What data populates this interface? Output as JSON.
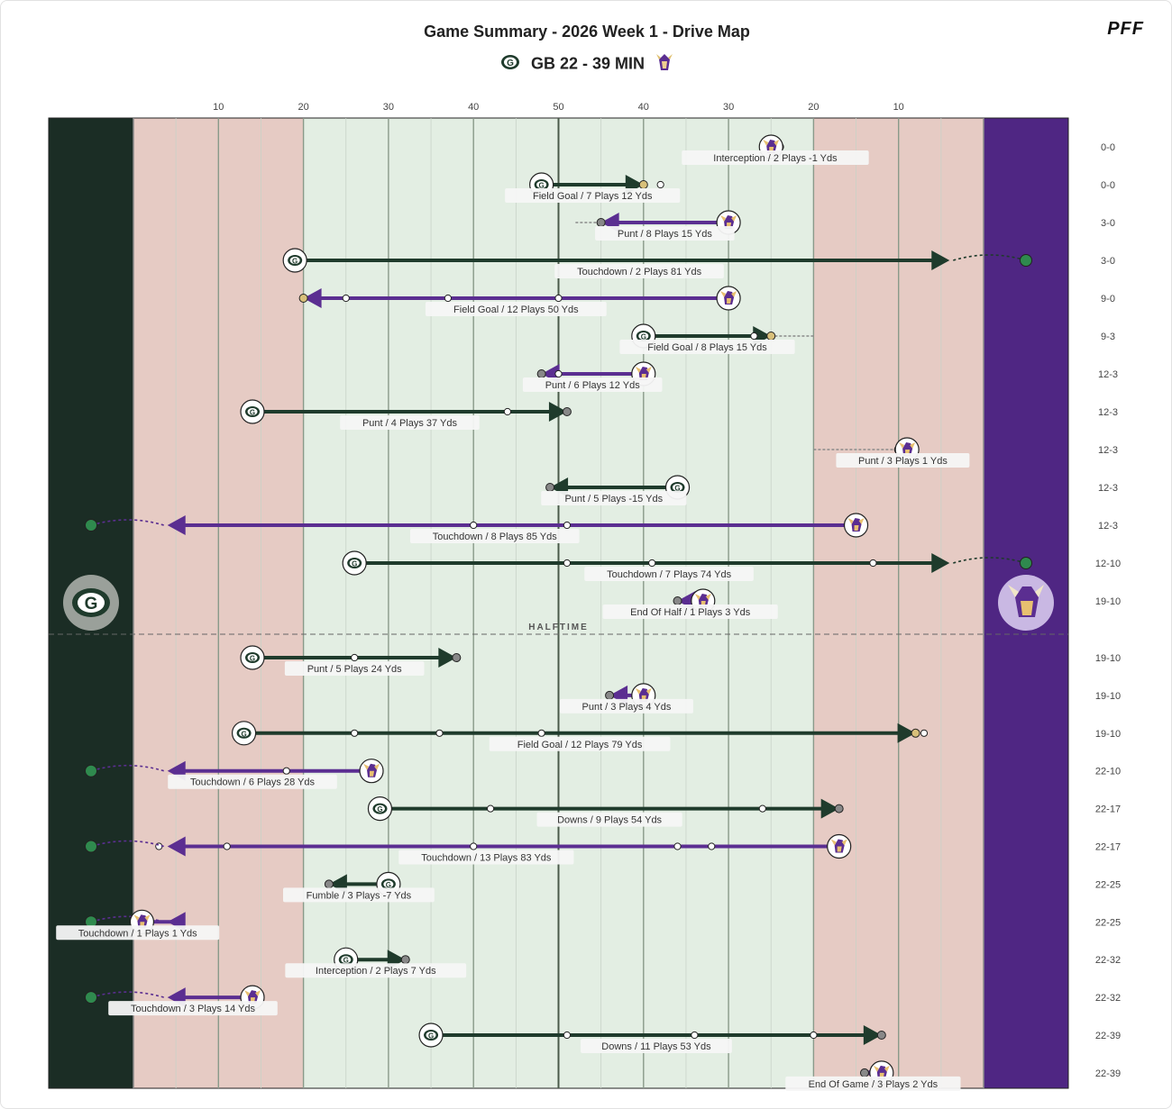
{
  "header": {
    "title": "Game Summary - 2026 Week 1 - Drive Map",
    "score_text": "GB 22 - 39 MIN",
    "brand": "PFF",
    "home_logo": "packers-g-logo",
    "away_logo": "vikings-helmet-logo"
  },
  "colors": {
    "gb": "#1f3b2c",
    "min": "#5b2e91",
    "gb_endzone": "#1b2d25",
    "min_endzone": "#4f2683",
    "red_zone": "#e6cbc4",
    "mid_field": "#e3eee3"
  },
  "chart_data": {
    "type": "drive_map",
    "title": "Game Summary - 2026 Week 1 - Drive Map",
    "xaxis_ticks": [
      "10",
      "20",
      "30",
      "40",
      "50",
      "40",
      "30",
      "20",
      "10"
    ],
    "xaxis_tick_positions": [
      10,
      20,
      30,
      40,
      50,
      60,
      70,
      80,
      90
    ],
    "x_units": "yards from GB goal line (0 = GB goal line, 100 = MIN goal line)",
    "halftime_label": "HALFTIME",
    "halftime_after_drive": 12,
    "drives": [
      {
        "team": "MIN",
        "start": 75,
        "end": 76,
        "result": "Interception",
        "label": "Interception / 2 Plays -1 Yds",
        "score": "0-0",
        "plays": [],
        "prior": null,
        "turnover": true
      },
      {
        "team": "GB",
        "start": 48,
        "end": 60,
        "result": "Field Goal",
        "label": "Field Goal / 7 Plays 12 Yds",
        "score": "0-0",
        "plays": [
          62
        ],
        "prior": null,
        "marker": "fg"
      },
      {
        "team": "MIN",
        "start": 70,
        "end": 55,
        "result": "Punt",
        "label": "Punt / 8 Plays 15 Yds",
        "score": "3-0",
        "plays": [],
        "prior": 52,
        "marker": "gray"
      },
      {
        "team": "GB",
        "start": 19,
        "end": 100,
        "result": "Touchdown",
        "label": "Touchdown / 2 Plays 81 Yds",
        "score": "3-0",
        "plays": [],
        "prior": null,
        "marker": "td",
        "shape": "arc"
      },
      {
        "team": "MIN",
        "start": 70,
        "end": 20,
        "result": "Field Goal",
        "label": "Field Goal / 12 Plays 50 Yds",
        "score": "9-0",
        "plays": [
          25,
          37,
          50
        ],
        "prior": null,
        "marker": "fg"
      },
      {
        "team": "GB",
        "start": 60,
        "end": 75,
        "result": "Field Goal",
        "label": "Field Goal / 8 Plays 15 Yds",
        "score": "9-3",
        "plays": [
          73
        ],
        "prior": 80,
        "marker": "fg"
      },
      {
        "team": "MIN",
        "start": 60,
        "end": 48,
        "result": "Punt",
        "label": "Punt / 6 Plays 12 Yds",
        "score": "12-3",
        "plays": [
          50
        ],
        "prior": null,
        "marker": "gray"
      },
      {
        "team": "GB",
        "start": 14,
        "end": 51,
        "result": "Punt",
        "label": "Punt / 4 Plays 37 Yds",
        "score": "12-3",
        "plays": [
          44
        ],
        "prior": null,
        "marker": "gray"
      },
      {
        "team": "MIN",
        "start": 91,
        "end": 90,
        "result": "Punt",
        "label": "Punt / 3 Plays 1 Yds",
        "score": "12-3",
        "plays": [],
        "prior": 80,
        "marker": "gray"
      },
      {
        "team": "GB",
        "start": 64,
        "end": 49,
        "result": "Punt",
        "label": "Punt / 5 Plays -15 Yds",
        "score": "12-3",
        "plays": [],
        "prior": null,
        "marker": "gray"
      },
      {
        "team": "MIN",
        "start": 85,
        "end": 0,
        "result": "Touchdown",
        "label": "Touchdown / 8 Plays 85 Yds",
        "score": "12-3",
        "plays": [
          51,
          40
        ],
        "prior": null,
        "marker": "td",
        "shape": "arc"
      },
      {
        "team": "GB",
        "start": 26,
        "end": 100,
        "result": "Touchdown",
        "label": "Touchdown / 7 Plays 74 Yds",
        "score": "12-10",
        "plays": [
          51,
          61,
          87
        ],
        "prior": null,
        "marker": "td",
        "shape": "arc"
      },
      {
        "team": "MIN",
        "start": 67,
        "end": 64,
        "result": "End Of Half",
        "label": "End Of Half / 1 Plays 3 Yds",
        "score": "19-10",
        "plays": [],
        "prior": null,
        "marker": "gray"
      },
      {
        "team": "GB",
        "start": 14,
        "end": 38,
        "result": "Punt",
        "label": "Punt / 5 Plays 24 Yds",
        "score": "19-10",
        "plays": [
          26
        ],
        "prior": null,
        "marker": "gray"
      },
      {
        "team": "MIN",
        "start": 60,
        "end": 56,
        "result": "Punt",
        "label": "Punt / 3 Plays 4 Yds",
        "score": "19-10",
        "plays": [],
        "prior": null,
        "marker": "gray"
      },
      {
        "team": "GB",
        "start": 13,
        "end": 92,
        "result": "Field Goal",
        "label": "Field Goal / 12 Plays 79 Yds",
        "score": "19-10",
        "plays": [
          26,
          36,
          48
        ],
        "prior": null,
        "marker": "fg",
        "after": 93
      },
      {
        "team": "MIN",
        "start": 28,
        "end": 0,
        "result": "Touchdown",
        "label": "Touchdown / 6 Plays 28 Yds",
        "score": "22-10",
        "plays": [
          18
        ],
        "prior": null,
        "marker": "td",
        "shape": "arc"
      },
      {
        "team": "GB",
        "start": 29,
        "end": 83,
        "result": "Downs",
        "label": "Downs / 9 Plays 54 Yds",
        "score": "22-17",
        "plays": [
          42,
          74
        ],
        "prior": null,
        "marker": "gray"
      },
      {
        "team": "MIN",
        "start": 83,
        "end": 0,
        "result": "Touchdown",
        "label": "Touchdown / 13 Plays 83 Yds",
        "score": "22-17",
        "plays": [
          68,
          64,
          40,
          11,
          3
        ],
        "prior": null,
        "marker": "td",
        "shape": "arc"
      },
      {
        "team": "GB",
        "start": 30,
        "end": 23,
        "result": "Fumble",
        "label": "Fumble / 3 Plays -7 Yds",
        "score": "22-25",
        "plays": [],
        "prior": null,
        "marker": "turnover"
      },
      {
        "team": "MIN",
        "start": 1,
        "end": 0,
        "result": "Touchdown",
        "label": "Touchdown / 1 Plays 1 Yds",
        "score": "22-25",
        "plays": [],
        "prior": null,
        "marker": "td",
        "shape": "arc"
      },
      {
        "team": "GB",
        "start": 25,
        "end": 32,
        "result": "Interception",
        "label": "Interception / 2 Plays 7 Yds",
        "score": "22-32",
        "plays": [],
        "prior": null,
        "marker": "turnover"
      },
      {
        "team": "MIN",
        "start": 14,
        "end": 0,
        "result": "Touchdown",
        "label": "Touchdown / 3 Plays 14 Yds",
        "score": "22-32",
        "plays": [],
        "prior": null,
        "marker": "td",
        "shape": "arc"
      },
      {
        "team": "GB",
        "start": 35,
        "end": 88,
        "result": "Downs",
        "label": "Downs / 11 Plays 53 Yds",
        "score": "22-39",
        "plays": [
          51,
          66,
          80
        ],
        "prior": null,
        "marker": "gray"
      },
      {
        "team": "MIN",
        "start": 88,
        "end": 86,
        "result": "End Of Game",
        "label": "End Of Game / 3 Plays 2 Yds",
        "score": "22-39",
        "plays": [],
        "prior": null,
        "marker": "gray"
      }
    ]
  }
}
